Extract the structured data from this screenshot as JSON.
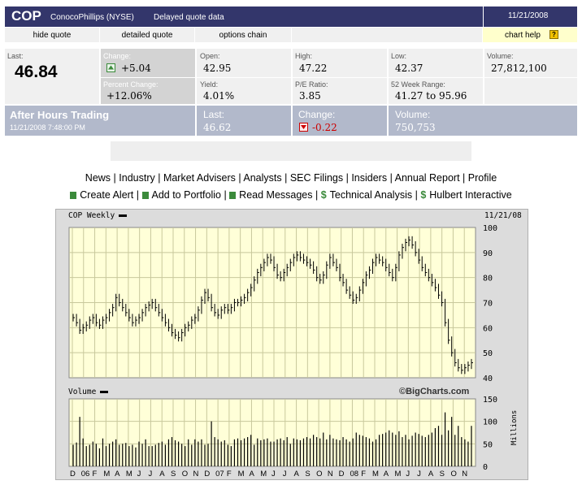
{
  "header": {
    "symbol": "COP",
    "company": "ConocoPhillips (NYSE)",
    "delayed": "Delayed quote data",
    "date": "11/21/2008"
  },
  "links": {
    "hide_quote": "hide quote",
    "detailed_quote": "detailed quote",
    "options_chain": "options chain",
    "chart_help": "chart help",
    "help_icon": "?"
  },
  "quote": {
    "last_label": "Last:",
    "last": "46.84",
    "change_label": "Change:",
    "change": "+5.04",
    "pct_label": "Percent Change:",
    "pct": "+12.06%",
    "open_label": "Open:",
    "open": "42.95",
    "yield_label": "Yield:",
    "yield": "4.01%",
    "high_label": "High:",
    "high": "47.22",
    "pe_label": "P/E Ratio:",
    "pe": "3.85",
    "low_label": "Low:",
    "low": "42.37",
    "range_label": "52 Week Range:",
    "range": "41.27 to 95.96",
    "volume_label": "Volume:",
    "volume": "27,812,100",
    "up_icon": "up-arrow-icon",
    "down_icon": "down-arrow-icon",
    "up_color": "#3b8a3b",
    "down_color": "#cc0000"
  },
  "after_hours": {
    "title": "After Hours Trading",
    "date": "11/21/2008 7:48:00 PM",
    "last_label": "Last:",
    "last": "46.62",
    "change_label": "Change:",
    "change": "-0.22",
    "volume_label": "Volume:",
    "volume": "750,753"
  },
  "nav1": [
    "News",
    "Industry",
    "Market Advisers",
    "Analysts",
    "SEC Filings",
    "Insiders",
    "Annual Report",
    "Profile"
  ],
  "nav2": [
    "Create Alert",
    "Add to Portfolio",
    "Read Messages",
    "Technical Analysis",
    "Hulbert Interactive"
  ],
  "chart_data": {
    "type": "bar",
    "title": "COP Weekly",
    "date": "11/21/08",
    "credit": "©BigCharts.com",
    "price_panel": {
      "ylim": [
        40,
        100
      ],
      "yticks": [
        40,
        50,
        60,
        70,
        80,
        90,
        100
      ],
      "weekly_close": [
        64,
        62,
        59,
        60,
        61,
        63,
        64,
        62,
        61,
        63,
        64,
        66,
        68,
        72,
        70,
        68,
        66,
        64,
        62,
        63,
        64,
        66,
        68,
        69,
        70,
        68,
        66,
        64,
        62,
        60,
        58,
        57,
        56,
        58,
        60,
        61,
        63,
        64,
        67,
        71,
        74,
        72,
        68,
        66,
        65,
        67,
        68,
        67,
        68,
        70,
        70,
        71,
        72,
        74,
        76,
        79,
        82,
        84,
        86,
        88,
        87,
        84,
        81,
        80,
        82,
        84,
        86,
        88,
        89,
        88,
        87,
        86,
        85,
        83,
        80,
        79,
        81,
        85,
        88,
        86,
        84,
        80,
        78,
        75,
        73,
        71,
        72,
        75,
        78,
        81,
        83,
        86,
        88,
        87,
        86,
        84,
        82,
        80,
        84,
        89,
        92,
        94,
        95,
        93,
        90,
        87,
        84,
        82,
        80,
        78,
        76,
        73,
        70,
        62,
        55,
        50,
        46,
        44,
        43,
        44,
        45,
        46
      ]
    },
    "volume_panel": {
      "label": "Volume",
      "unit": "Millions",
      "ylim": [
        0,
        150
      ],
      "yticks": [
        0,
        50,
        100,
        150
      ],
      "weekly": [
        48,
        53,
        110,
        62,
        45,
        48,
        55,
        50,
        40,
        62,
        45,
        50,
        55,
        60,
        48,
        50,
        52,
        45,
        48,
        42,
        55,
        50,
        60,
        45,
        45,
        48,
        52,
        55,
        48,
        60,
        65,
        58,
        55,
        50,
        45,
        60,
        48,
        60,
        55,
        60,
        48,
        50,
        100,
        65,
        60,
        55,
        58,
        48,
        45,
        60,
        62,
        58,
        62,
        65,
        70,
        48,
        62,
        58,
        60,
        62,
        55,
        55,
        60,
        62,
        58,
        65,
        50,
        62,
        60,
        58,
        62,
        65,
        62,
        70,
        65,
        62,
        75,
        60,
        70,
        62,
        60,
        58,
        65,
        60,
        55,
        62,
        75,
        70,
        68,
        65,
        62,
        55,
        60,
        70,
        72,
        75,
        80,
        75,
        70,
        78,
        65,
        70,
        60,
        68,
        75,
        72,
        68,
        65,
        70,
        75,
        85,
        90,
        70,
        120,
        80,
        110,
        70,
        90,
        65,
        60,
        55,
        90
      ],
      "x_labels": [
        "D",
        "06",
        "F",
        "M",
        "A",
        "M",
        "J",
        "J",
        "A",
        "S",
        "O",
        "N",
        "D",
        "07",
        "F",
        "M",
        "A",
        "M",
        "J",
        "J",
        "A",
        "S",
        "O",
        "N",
        "D",
        "08",
        "F",
        "M",
        "A",
        "M",
        "J",
        "J",
        "A",
        "S",
        "O",
        "N"
      ]
    }
  }
}
